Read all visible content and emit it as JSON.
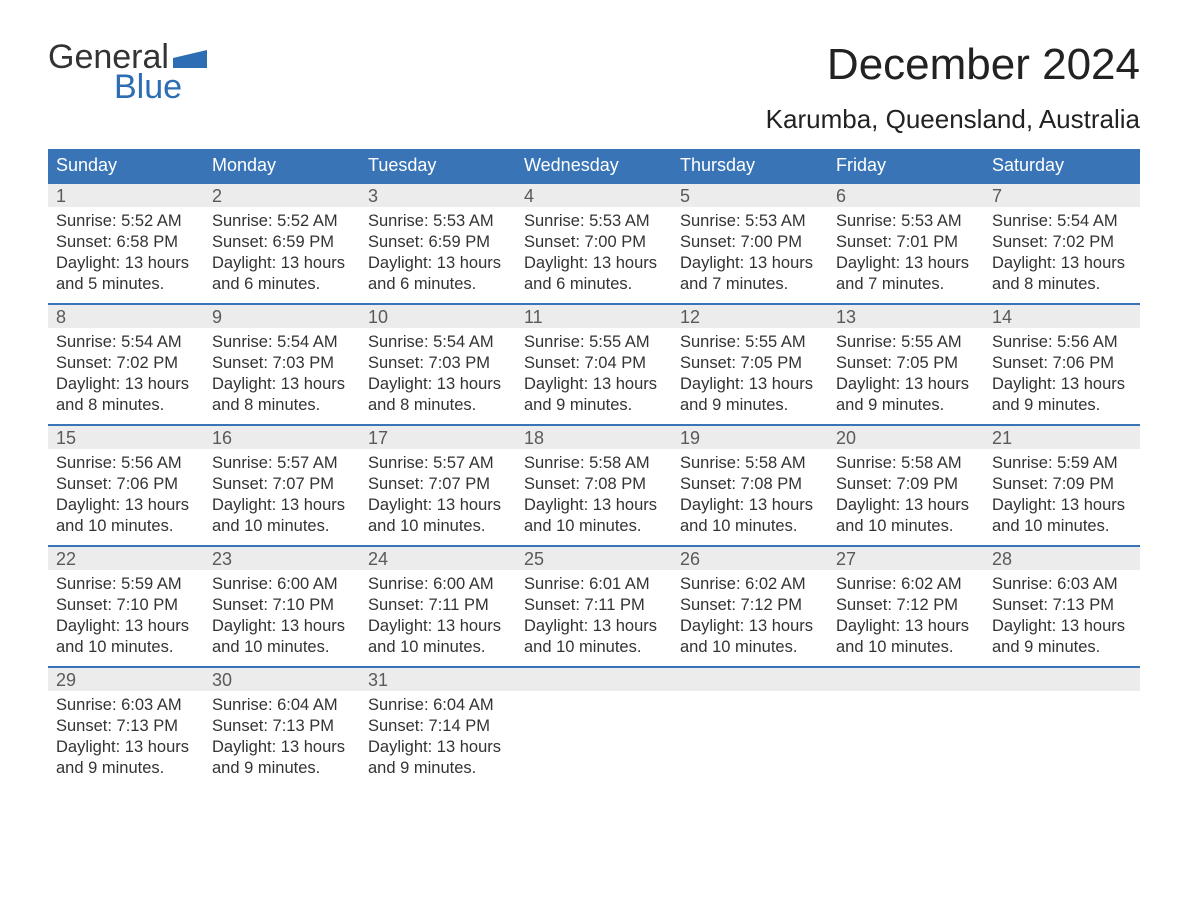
{
  "logo": {
    "top": "General",
    "bottom": "Blue"
  },
  "title": "December 2024",
  "location": "Karumba, Queensland, Australia",
  "colors": {
    "header_bg": "#3874b6",
    "header_text": "#ffffff",
    "daynum_bg": "#ececec",
    "daynum_text": "#5a5a5a",
    "body_text": "#333333",
    "week_divider": "#3874b6",
    "page_bg": "#ffffff",
    "logo_blue": "#2d6db3"
  },
  "typography": {
    "title_fontsize": 44,
    "location_fontsize": 26,
    "header_fontsize": 18,
    "daynum_fontsize": 18,
    "cell_fontsize": 16.5,
    "font_family": "Arial"
  },
  "day_headers": [
    "Sunday",
    "Monday",
    "Tuesday",
    "Wednesday",
    "Thursday",
    "Friday",
    "Saturday"
  ],
  "weeks": [
    [
      {
        "n": "1",
        "sunrise": "5:52 AM",
        "sunset": "6:58 PM",
        "dl1": "13 hours",
        "dl2": "and 5 minutes."
      },
      {
        "n": "2",
        "sunrise": "5:52 AM",
        "sunset": "6:59 PM",
        "dl1": "13 hours",
        "dl2": "and 6 minutes."
      },
      {
        "n": "3",
        "sunrise": "5:53 AM",
        "sunset": "6:59 PM",
        "dl1": "13 hours",
        "dl2": "and 6 minutes."
      },
      {
        "n": "4",
        "sunrise": "5:53 AM",
        "sunset": "7:00 PM",
        "dl1": "13 hours",
        "dl2": "and 6 minutes."
      },
      {
        "n": "5",
        "sunrise": "5:53 AM",
        "sunset": "7:00 PM",
        "dl1": "13 hours",
        "dl2": "and 7 minutes."
      },
      {
        "n": "6",
        "sunrise": "5:53 AM",
        "sunset": "7:01 PM",
        "dl1": "13 hours",
        "dl2": "and 7 minutes."
      },
      {
        "n": "7",
        "sunrise": "5:54 AM",
        "sunset": "7:02 PM",
        "dl1": "13 hours",
        "dl2": "and 8 minutes."
      }
    ],
    [
      {
        "n": "8",
        "sunrise": "5:54 AM",
        "sunset": "7:02 PM",
        "dl1": "13 hours",
        "dl2": "and 8 minutes."
      },
      {
        "n": "9",
        "sunrise": "5:54 AM",
        "sunset": "7:03 PM",
        "dl1": "13 hours",
        "dl2": "and 8 minutes."
      },
      {
        "n": "10",
        "sunrise": "5:54 AM",
        "sunset": "7:03 PM",
        "dl1": "13 hours",
        "dl2": "and 8 minutes."
      },
      {
        "n": "11",
        "sunrise": "5:55 AM",
        "sunset": "7:04 PM",
        "dl1": "13 hours",
        "dl2": "and 9 minutes."
      },
      {
        "n": "12",
        "sunrise": "5:55 AM",
        "sunset": "7:05 PM",
        "dl1": "13 hours",
        "dl2": "and 9 minutes."
      },
      {
        "n": "13",
        "sunrise": "5:55 AM",
        "sunset": "7:05 PM",
        "dl1": "13 hours",
        "dl2": "and 9 minutes."
      },
      {
        "n": "14",
        "sunrise": "5:56 AM",
        "sunset": "7:06 PM",
        "dl1": "13 hours",
        "dl2": "and 9 minutes."
      }
    ],
    [
      {
        "n": "15",
        "sunrise": "5:56 AM",
        "sunset": "7:06 PM",
        "dl1": "13 hours",
        "dl2": "and 10 minutes."
      },
      {
        "n": "16",
        "sunrise": "5:57 AM",
        "sunset": "7:07 PM",
        "dl1": "13 hours",
        "dl2": "and 10 minutes."
      },
      {
        "n": "17",
        "sunrise": "5:57 AM",
        "sunset": "7:07 PM",
        "dl1": "13 hours",
        "dl2": "and 10 minutes."
      },
      {
        "n": "18",
        "sunrise": "5:58 AM",
        "sunset": "7:08 PM",
        "dl1": "13 hours",
        "dl2": "and 10 minutes."
      },
      {
        "n": "19",
        "sunrise": "5:58 AM",
        "sunset": "7:08 PM",
        "dl1": "13 hours",
        "dl2": "and 10 minutes."
      },
      {
        "n": "20",
        "sunrise": "5:58 AM",
        "sunset": "7:09 PM",
        "dl1": "13 hours",
        "dl2": "and 10 minutes."
      },
      {
        "n": "21",
        "sunrise": "5:59 AM",
        "sunset": "7:09 PM",
        "dl1": "13 hours",
        "dl2": "and 10 minutes."
      }
    ],
    [
      {
        "n": "22",
        "sunrise": "5:59 AM",
        "sunset": "7:10 PM",
        "dl1": "13 hours",
        "dl2": "and 10 minutes."
      },
      {
        "n": "23",
        "sunrise": "6:00 AM",
        "sunset": "7:10 PM",
        "dl1": "13 hours",
        "dl2": "and 10 minutes."
      },
      {
        "n": "24",
        "sunrise": "6:00 AM",
        "sunset": "7:11 PM",
        "dl1": "13 hours",
        "dl2": "and 10 minutes."
      },
      {
        "n": "25",
        "sunrise": "6:01 AM",
        "sunset": "7:11 PM",
        "dl1": "13 hours",
        "dl2": "and 10 minutes."
      },
      {
        "n": "26",
        "sunrise": "6:02 AM",
        "sunset": "7:12 PM",
        "dl1": "13 hours",
        "dl2": "and 10 minutes."
      },
      {
        "n": "27",
        "sunrise": "6:02 AM",
        "sunset": "7:12 PM",
        "dl1": "13 hours",
        "dl2": "and 10 minutes."
      },
      {
        "n": "28",
        "sunrise": "6:03 AM",
        "sunset": "7:13 PM",
        "dl1": "13 hours",
        "dl2": "and 9 minutes."
      }
    ],
    [
      {
        "n": "29",
        "sunrise": "6:03 AM",
        "sunset": "7:13 PM",
        "dl1": "13 hours",
        "dl2": "and 9 minutes."
      },
      {
        "n": "30",
        "sunrise": "6:04 AM",
        "sunset": "7:13 PM",
        "dl1": "13 hours",
        "dl2": "and 9 minutes."
      },
      {
        "n": "31",
        "sunrise": "6:04 AM",
        "sunset": "7:14 PM",
        "dl1": "13 hours",
        "dl2": "and 9 minutes."
      },
      null,
      null,
      null,
      null
    ]
  ],
  "labels": {
    "sunrise": "Sunrise: ",
    "sunset": "Sunset: ",
    "daylight": "Daylight: "
  }
}
